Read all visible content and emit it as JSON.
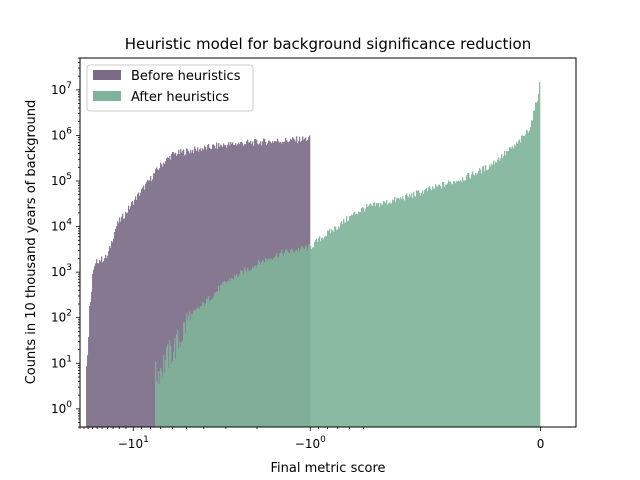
{
  "chart_data": {
    "type": "bar",
    "title": "Heuristic model for background significance reduction",
    "xlabel": "Final metric score",
    "ylabel": "Counts in 10 thousand years of background",
    "xscale": "symlog",
    "yscale": "log",
    "xlim": [
      -20,
      0.1
    ],
    "ylim": [
      0.4,
      50000000
    ],
    "legend_position": "top-left",
    "grid": false,
    "x_ticks": [
      {
        "value": -10,
        "base": "−10",
        "exp": "1"
      },
      {
        "value": -1,
        "base": "−10",
        "exp": "0"
      },
      {
        "value": 0,
        "base": "0",
        "exp": ""
      }
    ],
    "y_ticks": [
      {
        "value": 1,
        "base": "10",
        "exp": "0"
      },
      {
        "value": 10,
        "base": "10",
        "exp": "1"
      },
      {
        "value": 100,
        "base": "10",
        "exp": "2"
      },
      {
        "value": 1000,
        "base": "10",
        "exp": "3"
      },
      {
        "value": 10000,
        "base": "10",
        "exp": "4"
      },
      {
        "value": 100000,
        "base": "10",
        "exp": "5"
      },
      {
        "value": 1000000,
        "base": "10",
        "exp": "6"
      },
      {
        "value": 10000000,
        "base": "10",
        "exp": "7"
      }
    ],
    "series": [
      {
        "name": "Before heuristics",
        "color": "#7b6b87",
        "x": [
          -18.5,
          -18,
          -17,
          -16,
          -15,
          -14,
          -13,
          -12.5,
          -12,
          -11.5,
          -11,
          -10,
          -9,
          -8,
          -7,
          -6,
          -5,
          -4.5,
          -4,
          -3.5,
          -3,
          -2.5,
          -2,
          -1.5,
          -1.2,
          -1.0
        ],
        "y": [
          6,
          30,
          900,
          1800,
          1900,
          2200,
          6000,
          10000,
          13000,
          16000,
          20000,
          35000,
          60000,
          110000,
          220000,
          380000,
          450000,
          480000,
          520000,
          570000,
          620000,
          670000,
          700000,
          760000,
          800000,
          850000
        ]
      },
      {
        "name": "After heuristics",
        "color": "#7fb39a",
        "x": [
          -7.5,
          -6.5,
          -5.5,
          -5,
          -4.5,
          -4,
          -3.5,
          -3,
          -2.5,
          -2,
          -1.5,
          -1.0,
          -0.9,
          -0.8,
          -0.7,
          -0.6,
          -0.5,
          -0.4,
          -0.3,
          -0.2,
          -0.15,
          -0.1,
          -0.07,
          -0.05,
          -0.03,
          -0.02,
          -0.01,
          -0.003
        ],
        "y": [
          5,
          12,
          30,
          80,
          130,
          200,
          330,
          600,
          900,
          1500,
          2500,
          3500,
          5000,
          7000,
          10000,
          16000,
          25000,
          40000,
          70000,
          130000,
          200000,
          400000,
          600000,
          900000,
          1500000,
          3000000,
          6000000,
          13000000
        ]
      }
    ]
  }
}
